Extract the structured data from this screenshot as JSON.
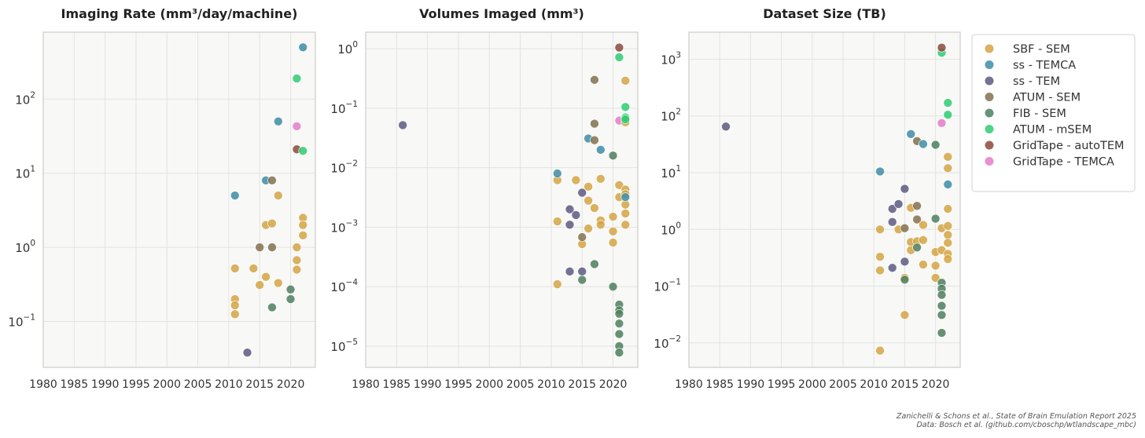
{
  "chart_data": [
    {
      "type": "scatter",
      "title": "Imaging Rate (mm³/day/machine)",
      "xlabel": "",
      "ylabel": "",
      "yscale": "log",
      "xlim": [
        1980,
        2024
      ],
      "ylim": [
        0.024,
        800
      ],
      "xticks": [
        1980,
        1985,
        1990,
        1995,
        2000,
        2005,
        2010,
        2015,
        2020
      ],
      "xtick_labels": [
        "1980",
        "1985",
        "1990",
        "1995",
        "2000",
        "2005",
        "2010",
        "2015",
        "2020"
      ],
      "yticks": [
        0.1,
        1,
        10,
        100
      ],
      "ytick_labels": [
        [
          "10",
          "−1"
        ],
        [
          "10",
          "0"
        ],
        [
          "10",
          "1"
        ],
        [
          "10",
          "2"
        ]
      ],
      "points": [
        {
          "year": 2011,
          "value": 0.52,
          "series": "SBF - SEM"
        },
        {
          "year": 2011,
          "value": 0.2,
          "series": "SBF - SEM"
        },
        {
          "year": 2011,
          "value": 0.165,
          "series": "SBF - SEM"
        },
        {
          "year": 2011,
          "value": 0.125,
          "series": "SBF - SEM"
        },
        {
          "year": 2011,
          "value": 5,
          "series": "ss - TEMCA"
        },
        {
          "year": 2013,
          "value": 0.038,
          "series": "ss - TEM"
        },
        {
          "year": 2014,
          "value": 0.52,
          "series": "SBF - SEM"
        },
        {
          "year": 2015,
          "value": 0.31,
          "series": "SBF - SEM"
        },
        {
          "year": 2015,
          "value": 1.0,
          "series": "ATUM - SEM"
        },
        {
          "year": 2016,
          "value": 0.4,
          "series": "SBF - SEM"
        },
        {
          "year": 2016,
          "value": 2.0,
          "series": "SBF - SEM"
        },
        {
          "year": 2016,
          "value": 8,
          "series": "ss - TEMCA"
        },
        {
          "year": 2017,
          "value": 2.1,
          "series": "SBF - SEM"
        },
        {
          "year": 2017,
          "value": 1.0,
          "series": "ATUM - SEM"
        },
        {
          "year": 2017,
          "value": 8,
          "series": "ATUM - SEM"
        },
        {
          "year": 2017,
          "value": 0.155,
          "series": "FIB - SEM"
        },
        {
          "year": 2018,
          "value": 5,
          "series": "SBF - SEM"
        },
        {
          "year": 2018,
          "value": 0.33,
          "series": "SBF - SEM"
        },
        {
          "year": 2018,
          "value": 50,
          "series": "ss - TEMCA"
        },
        {
          "year": 2020,
          "value": 0.27,
          "series": "FIB - SEM"
        },
        {
          "year": 2020,
          "value": 0.2,
          "series": "FIB - SEM"
        },
        {
          "year": 2021,
          "value": 1.0,
          "series": "SBF - SEM"
        },
        {
          "year": 2021,
          "value": 0.67,
          "series": "SBF - SEM"
        },
        {
          "year": 2021,
          "value": 0.5,
          "series": "SBF - SEM"
        },
        {
          "year": 2021,
          "value": 190,
          "series": "ATUM - mSEM"
        },
        {
          "year": 2021,
          "value": 21,
          "series": "GridTape - autoTEM"
        },
        {
          "year": 2021,
          "value": 43,
          "series": "GridTape - TEMCA"
        },
        {
          "year": 2022,
          "value": 2.5,
          "series": "SBF - SEM"
        },
        {
          "year": 2022,
          "value": 2.0,
          "series": "SBF - SEM"
        },
        {
          "year": 2022,
          "value": 1.45,
          "series": "SBF - SEM"
        },
        {
          "year": 2022,
          "value": 500,
          "series": "ss - TEMCA"
        },
        {
          "year": 2022,
          "value": 20,
          "series": "ATUM - mSEM"
        }
      ]
    },
    {
      "type": "scatter",
      "title": "Volumes Imaged (mm³)",
      "xlabel": "",
      "ylabel": "",
      "yscale": "log",
      "xlim": [
        1980,
        2024
      ],
      "ylim": [
        4.4e-06,
        1.9
      ],
      "xticks": [
        1980,
        1985,
        1990,
        1995,
        2000,
        2005,
        2010,
        2015,
        2020
      ],
      "xtick_labels": [
        "1980",
        "1985",
        "1990",
        "1995",
        "2000",
        "2005",
        "2010",
        "2015",
        "2020"
      ],
      "yticks": [
        1e-05,
        0.0001,
        0.001,
        0.01,
        0.1,
        1
      ],
      "ytick_labels": [
        [
          "10",
          "−5"
        ],
        [
          "10",
          "−4"
        ],
        [
          "10",
          "−3"
        ],
        [
          "10",
          "−2"
        ],
        [
          "10",
          "−1"
        ],
        [
          "10",
          "0"
        ]
      ],
      "points": [
        {
          "year": 1986,
          "value": 0.052,
          "series": "ss - TEM"
        },
        {
          "year": 2011,
          "value": 0.0062,
          "series": "SBF - SEM"
        },
        {
          "year": 2011,
          "value": 0.00125,
          "series": "SBF - SEM"
        },
        {
          "year": 2011,
          "value": 0.00011,
          "series": "SBF - SEM"
        },
        {
          "year": 2011,
          "value": 0.008,
          "series": "ss - TEMCA"
        },
        {
          "year": 2013,
          "value": 0.0011,
          "series": "ss - TEM"
        },
        {
          "year": 2013,
          "value": 0.002,
          "series": "ss - TEM"
        },
        {
          "year": 2013,
          "value": 0.00018,
          "series": "ss - TEM"
        },
        {
          "year": 2014,
          "value": 0.0062,
          "series": "SBF - SEM"
        },
        {
          "year": 2014,
          "value": 0.0016,
          "series": "ss - TEM"
        },
        {
          "year": 2015,
          "value": 0.00052,
          "series": "SBF - SEM"
        },
        {
          "year": 2015,
          "value": 0.0038,
          "series": "ss - TEM"
        },
        {
          "year": 2015,
          "value": 0.00018,
          "series": "ss - TEM"
        },
        {
          "year": 2015,
          "value": 0.00068,
          "series": "ATUM - SEM"
        },
        {
          "year": 2015,
          "value": 0.00013,
          "series": "FIB - SEM"
        },
        {
          "year": 2016,
          "value": 0.0048,
          "series": "SBF - SEM"
        },
        {
          "year": 2016,
          "value": 0.0028,
          "series": "SBF - SEM"
        },
        {
          "year": 2016,
          "value": 0.00095,
          "series": "SBF - SEM"
        },
        {
          "year": 2016,
          "value": 0.031,
          "series": "ss - TEMCA"
        },
        {
          "year": 2017,
          "value": 0.0021,
          "series": "SBF - SEM"
        },
        {
          "year": 2017,
          "value": 0.3,
          "series": "ATUM - SEM"
        },
        {
          "year": 2017,
          "value": 0.055,
          "series": "ATUM - SEM"
        },
        {
          "year": 2017,
          "value": 0.029,
          "series": "ATUM - SEM"
        },
        {
          "year": 2017,
          "value": 0.00024,
          "series": "FIB - SEM"
        },
        {
          "year": 2018,
          "value": 0.0065,
          "series": "SBF - SEM"
        },
        {
          "year": 2018,
          "value": 0.0013,
          "series": "SBF - SEM"
        },
        {
          "year": 2018,
          "value": 0.0011,
          "series": "SBF - SEM"
        },
        {
          "year": 2018,
          "value": 0.02,
          "series": "ss - TEMCA"
        },
        {
          "year": 2020,
          "value": 0.0015,
          "series": "SBF - SEM"
        },
        {
          "year": 2020,
          "value": 0.00085,
          "series": "SBF - SEM"
        },
        {
          "year": 2020,
          "value": 0.00055,
          "series": "SBF - SEM"
        },
        {
          "year": 2020,
          "value": 0.016,
          "series": "FIB - SEM"
        },
        {
          "year": 2020,
          "value": 0.0001,
          "series": "FIB - SEM"
        },
        {
          "year": 2021,
          "value": 0.0051,
          "series": "SBF - SEM"
        },
        {
          "year": 2021,
          "value": 0.0032,
          "series": "SBF - SEM"
        },
        {
          "year": 2021,
          "value": 5e-05,
          "series": "FIB - SEM"
        },
        {
          "year": 2021,
          "value": 4e-05,
          "series": "FIB - SEM"
        },
        {
          "year": 2021,
          "value": 3.5e-05,
          "series": "FIB - SEM"
        },
        {
          "year": 2021,
          "value": 2.4e-05,
          "series": "FIB - SEM"
        },
        {
          "year": 2021,
          "value": 1.6e-05,
          "series": "FIB - SEM"
        },
        {
          "year": 2021,
          "value": 1e-05,
          "series": "FIB - SEM"
        },
        {
          "year": 2021,
          "value": 7.8e-06,
          "series": "FIB - SEM"
        },
        {
          "year": 2021,
          "value": 0.72,
          "series": "ATUM - mSEM"
        },
        {
          "year": 2021,
          "value": 1.05,
          "series": "GridTape - autoTEM"
        },
        {
          "year": 2021,
          "value": 0.062,
          "series": "GridTape - TEMCA"
        },
        {
          "year": 2022,
          "value": 0.29,
          "series": "SBF - SEM"
        },
        {
          "year": 2022,
          "value": 0.058,
          "series": "SBF - SEM"
        },
        {
          "year": 2022,
          "value": 0.0043,
          "series": "SBF - SEM"
        },
        {
          "year": 2022,
          "value": 0.0036,
          "series": "SBF - SEM"
        },
        {
          "year": 2022,
          "value": 0.0024,
          "series": "SBF - SEM"
        },
        {
          "year": 2022,
          "value": 0.0017,
          "series": "SBF - SEM"
        },
        {
          "year": 2022,
          "value": 0.0011,
          "series": "SBF - SEM"
        },
        {
          "year": 2022,
          "value": 0.0032,
          "series": "ss - TEMCA"
        },
        {
          "year": 2022,
          "value": 0.105,
          "series": "ATUM - mSEM"
        },
        {
          "year": 2022,
          "value": 0.07,
          "series": "ATUM - mSEM"
        },
        {
          "year": 2022,
          "value": 0.065,
          "series": "ATUM - mSEM"
        }
      ]
    },
    {
      "type": "scatter",
      "title": "Dataset Size (TB)",
      "xlabel": "",
      "ylabel": "",
      "yscale": "log",
      "xlim": [
        1980,
        2024
      ],
      "ylim": [
        0.0037,
        3000
      ],
      "xticks": [
        1980,
        1985,
        1990,
        1995,
        2000,
        2005,
        2010,
        2015,
        2020
      ],
      "xtick_labels": [
        "1980",
        "1985",
        "1990",
        "1995",
        "2000",
        "2005",
        "2010",
        "2015",
        "2020"
      ],
      "yticks": [
        0.01,
        0.1,
        1,
        10,
        100,
        1000
      ],
      "ytick_labels": [
        [
          "10",
          "−2"
        ],
        [
          "10",
          "−1"
        ],
        [
          "10",
          "0"
        ],
        [
          "10",
          "1"
        ],
        [
          "10",
          "2"
        ],
        [
          "10",
          "3"
        ]
      ],
      "points": [
        {
          "year": 1986,
          "value": 65,
          "series": "ss - TEM"
        },
        {
          "year": 2011,
          "value": 1.0,
          "series": "SBF - SEM"
        },
        {
          "year": 2011,
          "value": 0.33,
          "series": "SBF - SEM"
        },
        {
          "year": 2011,
          "value": 0.19,
          "series": "SBF - SEM"
        },
        {
          "year": 2011,
          "value": 0.0073,
          "series": "SBF - SEM"
        },
        {
          "year": 2011,
          "value": 10.5,
          "series": "ss - TEMCA"
        },
        {
          "year": 2013,
          "value": 2.3,
          "series": "ss - TEM"
        },
        {
          "year": 2013,
          "value": 1.35,
          "series": "ss - TEM"
        },
        {
          "year": 2013,
          "value": 0.21,
          "series": "ss - TEM"
        },
        {
          "year": 2014,
          "value": 1.0,
          "series": "SBF - SEM"
        },
        {
          "year": 2014,
          "value": 2.8,
          "series": "ss - TEM"
        },
        {
          "year": 2015,
          "value": 0.14,
          "series": "SBF - SEM"
        },
        {
          "year": 2015,
          "value": 0.031,
          "series": "SBF - SEM"
        },
        {
          "year": 2015,
          "value": 5.2,
          "series": "ss - TEM"
        },
        {
          "year": 2015,
          "value": 0.27,
          "series": "ss - TEM"
        },
        {
          "year": 2015,
          "value": 1.05,
          "series": "ATUM - SEM"
        },
        {
          "year": 2015,
          "value": 0.13,
          "series": "FIB - SEM"
        },
        {
          "year": 2016,
          "value": 2.4,
          "series": "SBF - SEM"
        },
        {
          "year": 2016,
          "value": 0.6,
          "series": "SBF - SEM"
        },
        {
          "year": 2016,
          "value": 0.43,
          "series": "SBF - SEM"
        },
        {
          "year": 2016,
          "value": 48,
          "series": "ss - TEMCA"
        },
        {
          "year": 2017,
          "value": 0.62,
          "series": "SBF - SEM"
        },
        {
          "year": 2017,
          "value": 36,
          "series": "ATUM - SEM"
        },
        {
          "year": 2017,
          "value": 2.6,
          "series": "ATUM - SEM"
        },
        {
          "year": 2017,
          "value": 1.5,
          "series": "ATUM - SEM"
        },
        {
          "year": 2017,
          "value": 0.48,
          "series": "FIB - SEM"
        },
        {
          "year": 2018,
          "value": 1.2,
          "series": "SBF - SEM"
        },
        {
          "year": 2018,
          "value": 0.65,
          "series": "SBF - SEM"
        },
        {
          "year": 2018,
          "value": 0.24,
          "series": "SBF - SEM"
        },
        {
          "year": 2018,
          "value": 32,
          "series": "ss - TEMCA"
        },
        {
          "year": 2020,
          "value": 0.4,
          "series": "SBF - SEM"
        },
        {
          "year": 2020,
          "value": 0.23,
          "series": "SBF - SEM"
        },
        {
          "year": 2020,
          "value": 0.14,
          "series": "SBF - SEM"
        },
        {
          "year": 2020,
          "value": 31,
          "series": "FIB - SEM"
        },
        {
          "year": 2020,
          "value": 1.55,
          "series": "FIB - SEM"
        },
        {
          "year": 2021,
          "value": 1.05,
          "series": "SBF - SEM"
        },
        {
          "year": 2021,
          "value": 0.43,
          "series": "SBF - SEM"
        },
        {
          "year": 2021,
          "value": 0.115,
          "series": "FIB - SEM"
        },
        {
          "year": 2021,
          "value": 0.09,
          "series": "FIB - SEM"
        },
        {
          "year": 2021,
          "value": 0.07,
          "series": "FIB - SEM"
        },
        {
          "year": 2021,
          "value": 0.045,
          "series": "FIB - SEM"
        },
        {
          "year": 2021,
          "value": 0.031,
          "series": "FIB - SEM"
        },
        {
          "year": 2021,
          "value": 0.015,
          "series": "FIB - SEM"
        },
        {
          "year": 2021,
          "value": 1300,
          "series": "ATUM - mSEM"
        },
        {
          "year": 2021,
          "value": 1600,
          "series": "GridTape - autoTEM"
        },
        {
          "year": 2021,
          "value": 75,
          "series": "GridTape - TEMCA"
        },
        {
          "year": 2022,
          "value": 19,
          "series": "SBF - SEM"
        },
        {
          "year": 2022,
          "value": 12,
          "series": "SBF - SEM"
        },
        {
          "year": 2022,
          "value": 2.3,
          "series": "SBF - SEM"
        },
        {
          "year": 2022,
          "value": 1.15,
          "series": "SBF - SEM"
        },
        {
          "year": 2022,
          "value": 0.8,
          "series": "SBF - SEM"
        },
        {
          "year": 2022,
          "value": 0.58,
          "series": "SBF - SEM"
        },
        {
          "year": 2022,
          "value": 0.37,
          "series": "SBF - SEM"
        },
        {
          "year": 2022,
          "value": 0.3,
          "series": "SBF - SEM"
        },
        {
          "year": 2022,
          "value": 6.2,
          "series": "ss - TEMCA"
        },
        {
          "year": 2022,
          "value": 170,
          "series": "ATUM - mSEM"
        },
        {
          "year": 2022,
          "value": 105,
          "series": "ATUM - mSEM"
        }
      ]
    }
  ],
  "legend": {
    "placement": "outside-right-top",
    "entries": [
      {
        "label": "SBF - SEM",
        "color": "#D4A444"
      },
      {
        "label": "ss - TEMCA",
        "color": "#3E8DA6"
      },
      {
        "label": "ss - TEM",
        "color": "#5C5A80"
      },
      {
        "label": "ATUM - SEM",
        "color": "#82714F"
      },
      {
        "label": "FIB - SEM",
        "color": "#4E7F5E"
      },
      {
        "label": "ATUM - mSEM",
        "color": "#2ECC71"
      },
      {
        "label": "GridTape - autoTEM",
        "color": "#8B4A3A"
      },
      {
        "label": "GridTape - TEMCA",
        "color": "#E47DC8"
      }
    ]
  },
  "credits": {
    "line1": "Zanichelli & Schons et al., State of Brain Emulation Report 2025",
    "line2": "Data: Bosch et al. (github.com/cboschp/wtlandscape_mbc)"
  },
  "colors": {
    "plot_background": "#F8F8F7",
    "grid": "#E3E3E1",
    "axis_frame": "#CFCFCB"
  }
}
